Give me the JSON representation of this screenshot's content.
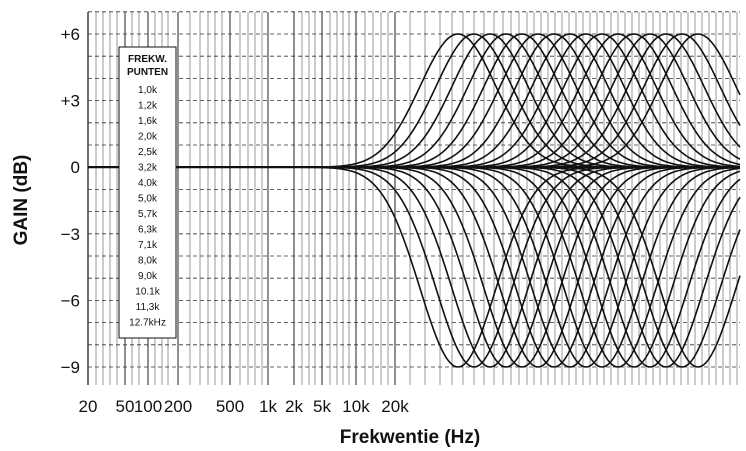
{
  "chart_data": {
    "type": "line",
    "xlabel": "Frekwentie (Hz)",
    "ylabel": "GAIN (dB)",
    "x_tick_labels": [
      "20",
      "50",
      "100",
      "200",
      "500",
      "1k",
      "2k",
      "5k",
      "10k",
      "20k"
    ],
    "y_tick_labels": [
      "+6",
      "+3",
      "0",
      "−3",
      "−6",
      "−9"
    ],
    "y_ticks": [
      6,
      3,
      0,
      -3,
      -6,
      -9
    ],
    "ylim": [
      -10,
      7
    ],
    "grid": true,
    "legend": {
      "title_lines": [
        "FREKW.",
        "PUNTEN"
      ],
      "entries": [
        "1,0k",
        "1,2k",
        "1,6k",
        "2,0k",
        "2,5k",
        "3,2k",
        "4,0k",
        "5,0k",
        "5,7k",
        "6,3k",
        "7,1k",
        "8,0k",
        "9,0k",
        "10.1k",
        "11,3k",
        "12.7kHz"
      ],
      "placement": "top-left"
    },
    "series_description": "Boost (+6 dB) and cut (−9 dB) curves for each frequency point",
    "center_frequencies_hz": [
      1000,
      1200,
      1600,
      2000,
      2500,
      3200,
      4000,
      5000,
      5700,
      6300,
      7100,
      8000,
      9000,
      10100,
      11300,
      12700
    ],
    "boost_db": 6,
    "cut_db": -9
  }
}
